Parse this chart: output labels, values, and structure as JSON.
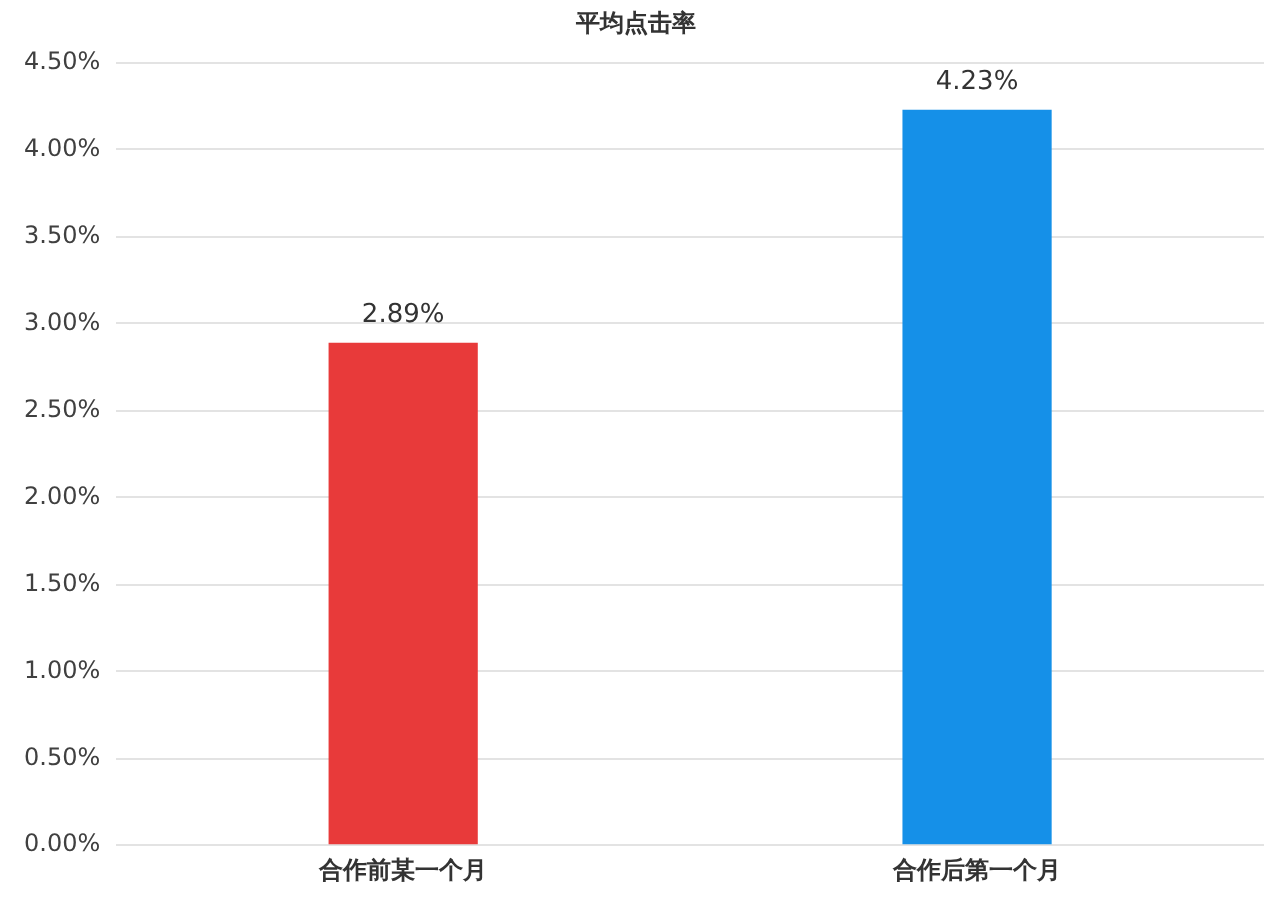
{
  "chart_data": {
    "type": "bar",
    "title": "平均点击率",
    "categories": [
      "合作前某一个月",
      "合作后第一个月"
    ],
    "values": [
      2.89,
      4.23
    ],
    "colors": [
      "#e83a3a",
      "#1590e8"
    ],
    "value_labels": [
      "2.89%",
      "4.23%"
    ],
    "ylim": [
      0,
      4.5
    ],
    "yticks": [
      {
        "value": 0,
        "label": "0.00%"
      },
      {
        "value": 0.5,
        "label": "0.50%"
      },
      {
        "value": 1,
        "label": "1.00%"
      },
      {
        "value": 1.5,
        "label": "1.50%"
      },
      {
        "value": 2,
        "label": "2.00%"
      },
      {
        "value": 2.5,
        "label": "2.50%"
      },
      {
        "value": 3,
        "label": "3.00%"
      },
      {
        "value": 3.5,
        "label": "3.50%"
      },
      {
        "value": 4,
        "label": "4.00%"
      },
      {
        "value": 4.5,
        "label": "4.50%"
      }
    ],
    "grid": "y",
    "legend": false
  }
}
